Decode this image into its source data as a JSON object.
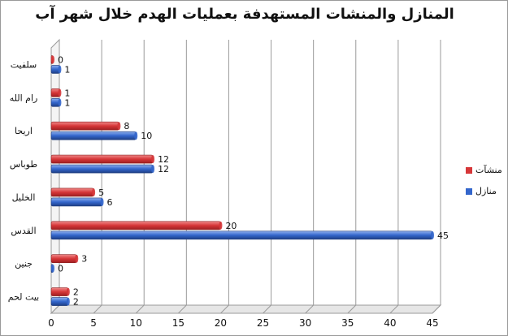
{
  "chart_data": {
    "type": "bar",
    "orientation": "horizontal",
    "title": "المنازل والمنشات المستهدفة بعمليات الهدم خلال شهر آب",
    "categories": [
      "سلفيت",
      "رام الله",
      "اريحا",
      "طوباس",
      "الخليل",
      "القدس",
      "جنين",
      "بيت لحم"
    ],
    "series": [
      {
        "name": "منشآت",
        "color": "#d63638",
        "values": [
          0,
          1,
          8,
          12,
          5,
          20,
          3,
          2
        ]
      },
      {
        "name": "منازل",
        "color": "#3366cc",
        "values": [
          1,
          1,
          10,
          12,
          6,
          45,
          0,
          2
        ]
      }
    ],
    "xlim": [
      0,
      45
    ],
    "x_ticks": [
      "0",
      "5",
      "10",
      "15",
      "20",
      "25",
      "30",
      "35",
      "40",
      "45"
    ],
    "grid": true,
    "legend_position": "right",
    "data_labels": true
  }
}
